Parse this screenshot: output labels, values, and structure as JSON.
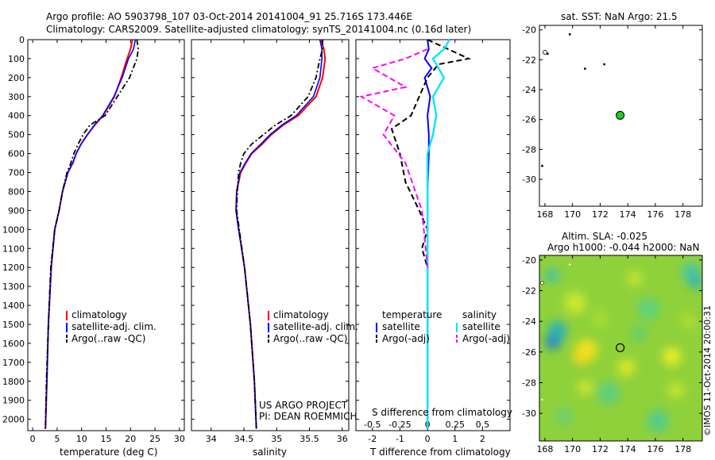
{
  "header": {
    "line1": "Argo profile: AO 5903798_107 03-Oct-2014 20141004_91 25.716S 173.446E",
    "line2": "Climatology: CARS2009. Satellite-adjusted climatology: synTS_20141004.nc (0.16d later)"
  },
  "colors": {
    "climatology": "#ff0000",
    "satellite": "#0000ff",
    "argo": "#000000",
    "sal_sat": "#00e5ff",
    "sal_argo": "#ff00ff",
    "marker": "#22cc22"
  },
  "chart_data": [
    {
      "type": "line",
      "xlabel": "temperature (deg C)",
      "ylabel": "",
      "xlim": [
        -1,
        31
      ],
      "ylim": [
        2060,
        0
      ],
      "xticks": [
        "0",
        "5",
        "10",
        "15",
        "20",
        "25",
        "30"
      ],
      "yticks": [
        "0",
        "100",
        "200",
        "300",
        "400",
        "500",
        "600",
        "700",
        "800",
        "900",
        "1000",
        "1100",
        "1200",
        "1300",
        "1400",
        "1500",
        "1600",
        "1700",
        "1800",
        "1900",
        "2000"
      ],
      "legend": [
        "climatology",
        "satellite-adj. clim.",
        "Argo(..raw -QC)"
      ],
      "series": [
        {
          "name": "climatology",
          "x": [
            20.4,
            20.0,
            19.3,
            18.1,
            16.7,
            14.4,
            12.7,
            11.2,
            9.9,
            8.9,
            8.2,
            7.2,
            6.1,
            5.4,
            4.5,
            3.8,
            3.2,
            2.9,
            2.6
          ],
          "y": [
            0,
            50,
            100,
            200,
            300,
            400,
            450,
            500,
            550,
            600,
            650,
            700,
            800,
            900,
            1000,
            1200,
            1500,
            1800,
            2050
          ]
        },
        {
          "name": "satellite-adj. clim.",
          "x": [
            21.0,
            20.6,
            19.6,
            18.3,
            16.6,
            14.3,
            12.6,
            11.2,
            9.9,
            8.9,
            8.2,
            7.2,
            6.1,
            5.4,
            4.5,
            3.8,
            3.2,
            2.9,
            2.6
          ],
          "y": [
            0,
            50,
            100,
            200,
            300,
            400,
            450,
            500,
            550,
            600,
            650,
            700,
            800,
            900,
            1000,
            1200,
            1500,
            1800,
            2050
          ]
        },
        {
          "name": "Argo(..raw -QC)",
          "x": [
            21.3,
            21.6,
            21.3,
            19.8,
            17.3,
            14.8,
            11.7,
            10.3,
            9.3,
            8.4,
            7.8,
            7.0,
            6.1,
            5.4,
            4.5,
            3.7,
            3.2,
            2.8,
            2.6
          ],
          "y": [
            0,
            50,
            100,
            200,
            300,
            400,
            450,
            500,
            550,
            600,
            650,
            700,
            800,
            900,
            1000,
            1200,
            1500,
            1800,
            2050
          ]
        }
      ]
    },
    {
      "type": "line",
      "xlabel": "salinity",
      "xlim": [
        33.7,
        36.1
      ],
      "ylim": [
        2060,
        0
      ],
      "xticks": [
        "34",
        "34.5",
        "35",
        "35.5",
        "36"
      ],
      "legend": [
        "climatology",
        "satellite-adj. clim.",
        "Argo(..raw -QC)"
      ],
      "annotation": [
        "US ARGO PROJECT",
        "PI: DEAN ROEMMICH"
      ],
      "series": [
        {
          "name": "climatology",
          "x": [
            35.68,
            35.72,
            35.74,
            35.7,
            35.6,
            35.33,
            35.1,
            34.92,
            34.78,
            34.62,
            34.53,
            34.45,
            34.39,
            34.38,
            34.42,
            34.51,
            34.6,
            34.66,
            34.69
          ],
          "y": [
            0,
            50,
            100,
            200,
            300,
            400,
            450,
            500,
            550,
            600,
            650,
            700,
            800,
            900,
            1000,
            1200,
            1500,
            1800,
            2050
          ]
        },
        {
          "name": "satellite-adj. clim.",
          "x": [
            35.66,
            35.69,
            35.69,
            35.66,
            35.56,
            35.3,
            35.08,
            34.9,
            34.76,
            34.61,
            34.52,
            34.44,
            34.39,
            34.38,
            34.42,
            34.51,
            34.6,
            34.66,
            34.69
          ],
          "y": [
            0,
            50,
            100,
            200,
            300,
            400,
            450,
            500,
            550,
            600,
            650,
            700,
            800,
            900,
            1000,
            1200,
            1500,
            1800,
            2050
          ]
        },
        {
          "name": "Argo(..raw -QC)",
          "x": [
            35.7,
            35.7,
            35.66,
            35.6,
            35.48,
            35.22,
            34.98,
            34.8,
            34.62,
            34.5,
            34.45,
            34.42,
            34.4,
            34.39,
            34.43,
            34.51,
            34.6,
            34.66,
            34.69
          ],
          "y": [
            0,
            50,
            100,
            200,
            300,
            400,
            450,
            500,
            550,
            600,
            650,
            700,
            800,
            900,
            1000,
            1200,
            1500,
            1800,
            2050
          ]
        }
      ]
    },
    {
      "type": "line",
      "xlabel": "T difference from climatology",
      "xlabel2": "S difference from climatology",
      "xlim": [
        -2.6,
        3.0
      ],
      "ylim": [
        2060,
        0
      ],
      "xticks": [
        "-2",
        "-1",
        "0",
        "1",
        "2"
      ],
      "xticks2": [
        "-0.5",
        "-0.25",
        "0",
        "0.25",
        "0.5"
      ],
      "legend_titles": [
        "temperature",
        "salinity"
      ],
      "legend": [
        "satellite",
        "Argo(-adj)",
        "satellite",
        "Argo(-adj)"
      ],
      "series": [
        {
          "name": "satellite",
          "x": [
            0,
            0.05,
            -0.1,
            0.15,
            -0.1,
            0.1,
            0,
            0.05,
            0.05,
            0,
            0,
            0,
            0,
            0
          ],
          "y": [
            0,
            50,
            100,
            150,
            200,
            300,
            400,
            500,
            600,
            800,
            1000,
            1200,
            1500,
            2050
          ]
        },
        {
          "name": "Argo(-adj)",
          "x": [
            0,
            0.9,
            1.5,
            0.4,
            0,
            -0.3,
            -0.6,
            -1.3,
            -1.0,
            -0.8,
            -0.3,
            0,
            -0.2,
            0,
            0,
            0
          ],
          "y": [
            0,
            60,
            100,
            130,
            200,
            300,
            400,
            470,
            600,
            750,
            900,
            1000,
            1100,
            1200,
            1500,
            2050
          ]
        },
        {
          "name": "satellite",
          "x": [
            0.2,
            0.15,
            0.05,
            0.15,
            0.05,
            0.08,
            0.05,
            0,
            0,
            0,
            0
          ],
          "y": [
            0,
            50,
            100,
            200,
            300,
            400,
            500,
            600,
            800,
            1200,
            2050
          ]
        },
        {
          "name": "Argo(-adj)",
          "x": [
            0,
            -0.2,
            -0.5,
            -0.2,
            -0.6,
            -0.3,
            -0.4,
            -0.2,
            -0.05,
            0
          ],
          "y": [
            50,
            100,
            150,
            250,
            300,
            400,
            500,
            650,
            900,
            1200
          ]
        }
      ]
    },
    {
      "type": "scatter",
      "title": "sat. SST: NaN Argo: 21.5",
      "xlim": [
        167.6,
        179.4
      ],
      "ylim": [
        -31.8,
        -19.7
      ],
      "xticks": [
        "168",
        "170",
        "172",
        "174",
        "176",
        "178"
      ],
      "yticks": [
        "-20",
        "-22",
        "-24",
        "-26",
        "-28",
        "-30"
      ],
      "x": [
        173.45,
        168.2,
        169.8,
        170.9,
        172.3,
        167.8,
        168.0
      ],
      "y": [
        -25.72,
        -21.6,
        -20.3,
        -22.6,
        -22.3,
        -29.1,
        -21.5
      ]
    },
    {
      "type": "heatmap",
      "title": "Altim. SLA: -0.025",
      "subtitle": "Argo h1000: -0.044 h2000: NaN",
      "xlim": [
        167.6,
        179.4
      ],
      "ylim": [
        -31.8,
        -19.7
      ],
      "xticks": [
        "168",
        "170",
        "172",
        "174",
        "176",
        "178"
      ],
      "yticks": [
        "-20",
        "-22",
        "-24",
        "-26",
        "-28",
        "-30"
      ],
      "marker": {
        "x": 173.45,
        "y": -25.72
      },
      "features": [
        {
          "x": 168.4,
          "y": -25.4,
          "v": "low"
        },
        {
          "x": 171.0,
          "y": -25.9,
          "v": "high"
        },
        {
          "x": 173.9,
          "y": -27.0,
          "v": "high"
        },
        {
          "x": 177.2,
          "y": -26.3,
          "v": "high"
        },
        {
          "x": 178.2,
          "y": -20.8,
          "v": "low"
        },
        {
          "x": 172.6,
          "y": -28.7,
          "v": "low"
        },
        {
          "x": 175.5,
          "y": -23.2,
          "v": "low"
        },
        {
          "x": 170.2,
          "y": -22.8,
          "v": "high"
        },
        {
          "x": 176.2,
          "y": -30.4,
          "v": "low"
        }
      ]
    }
  ],
  "side_text": "©IMOS 11-Oct-2014 20:00:31"
}
